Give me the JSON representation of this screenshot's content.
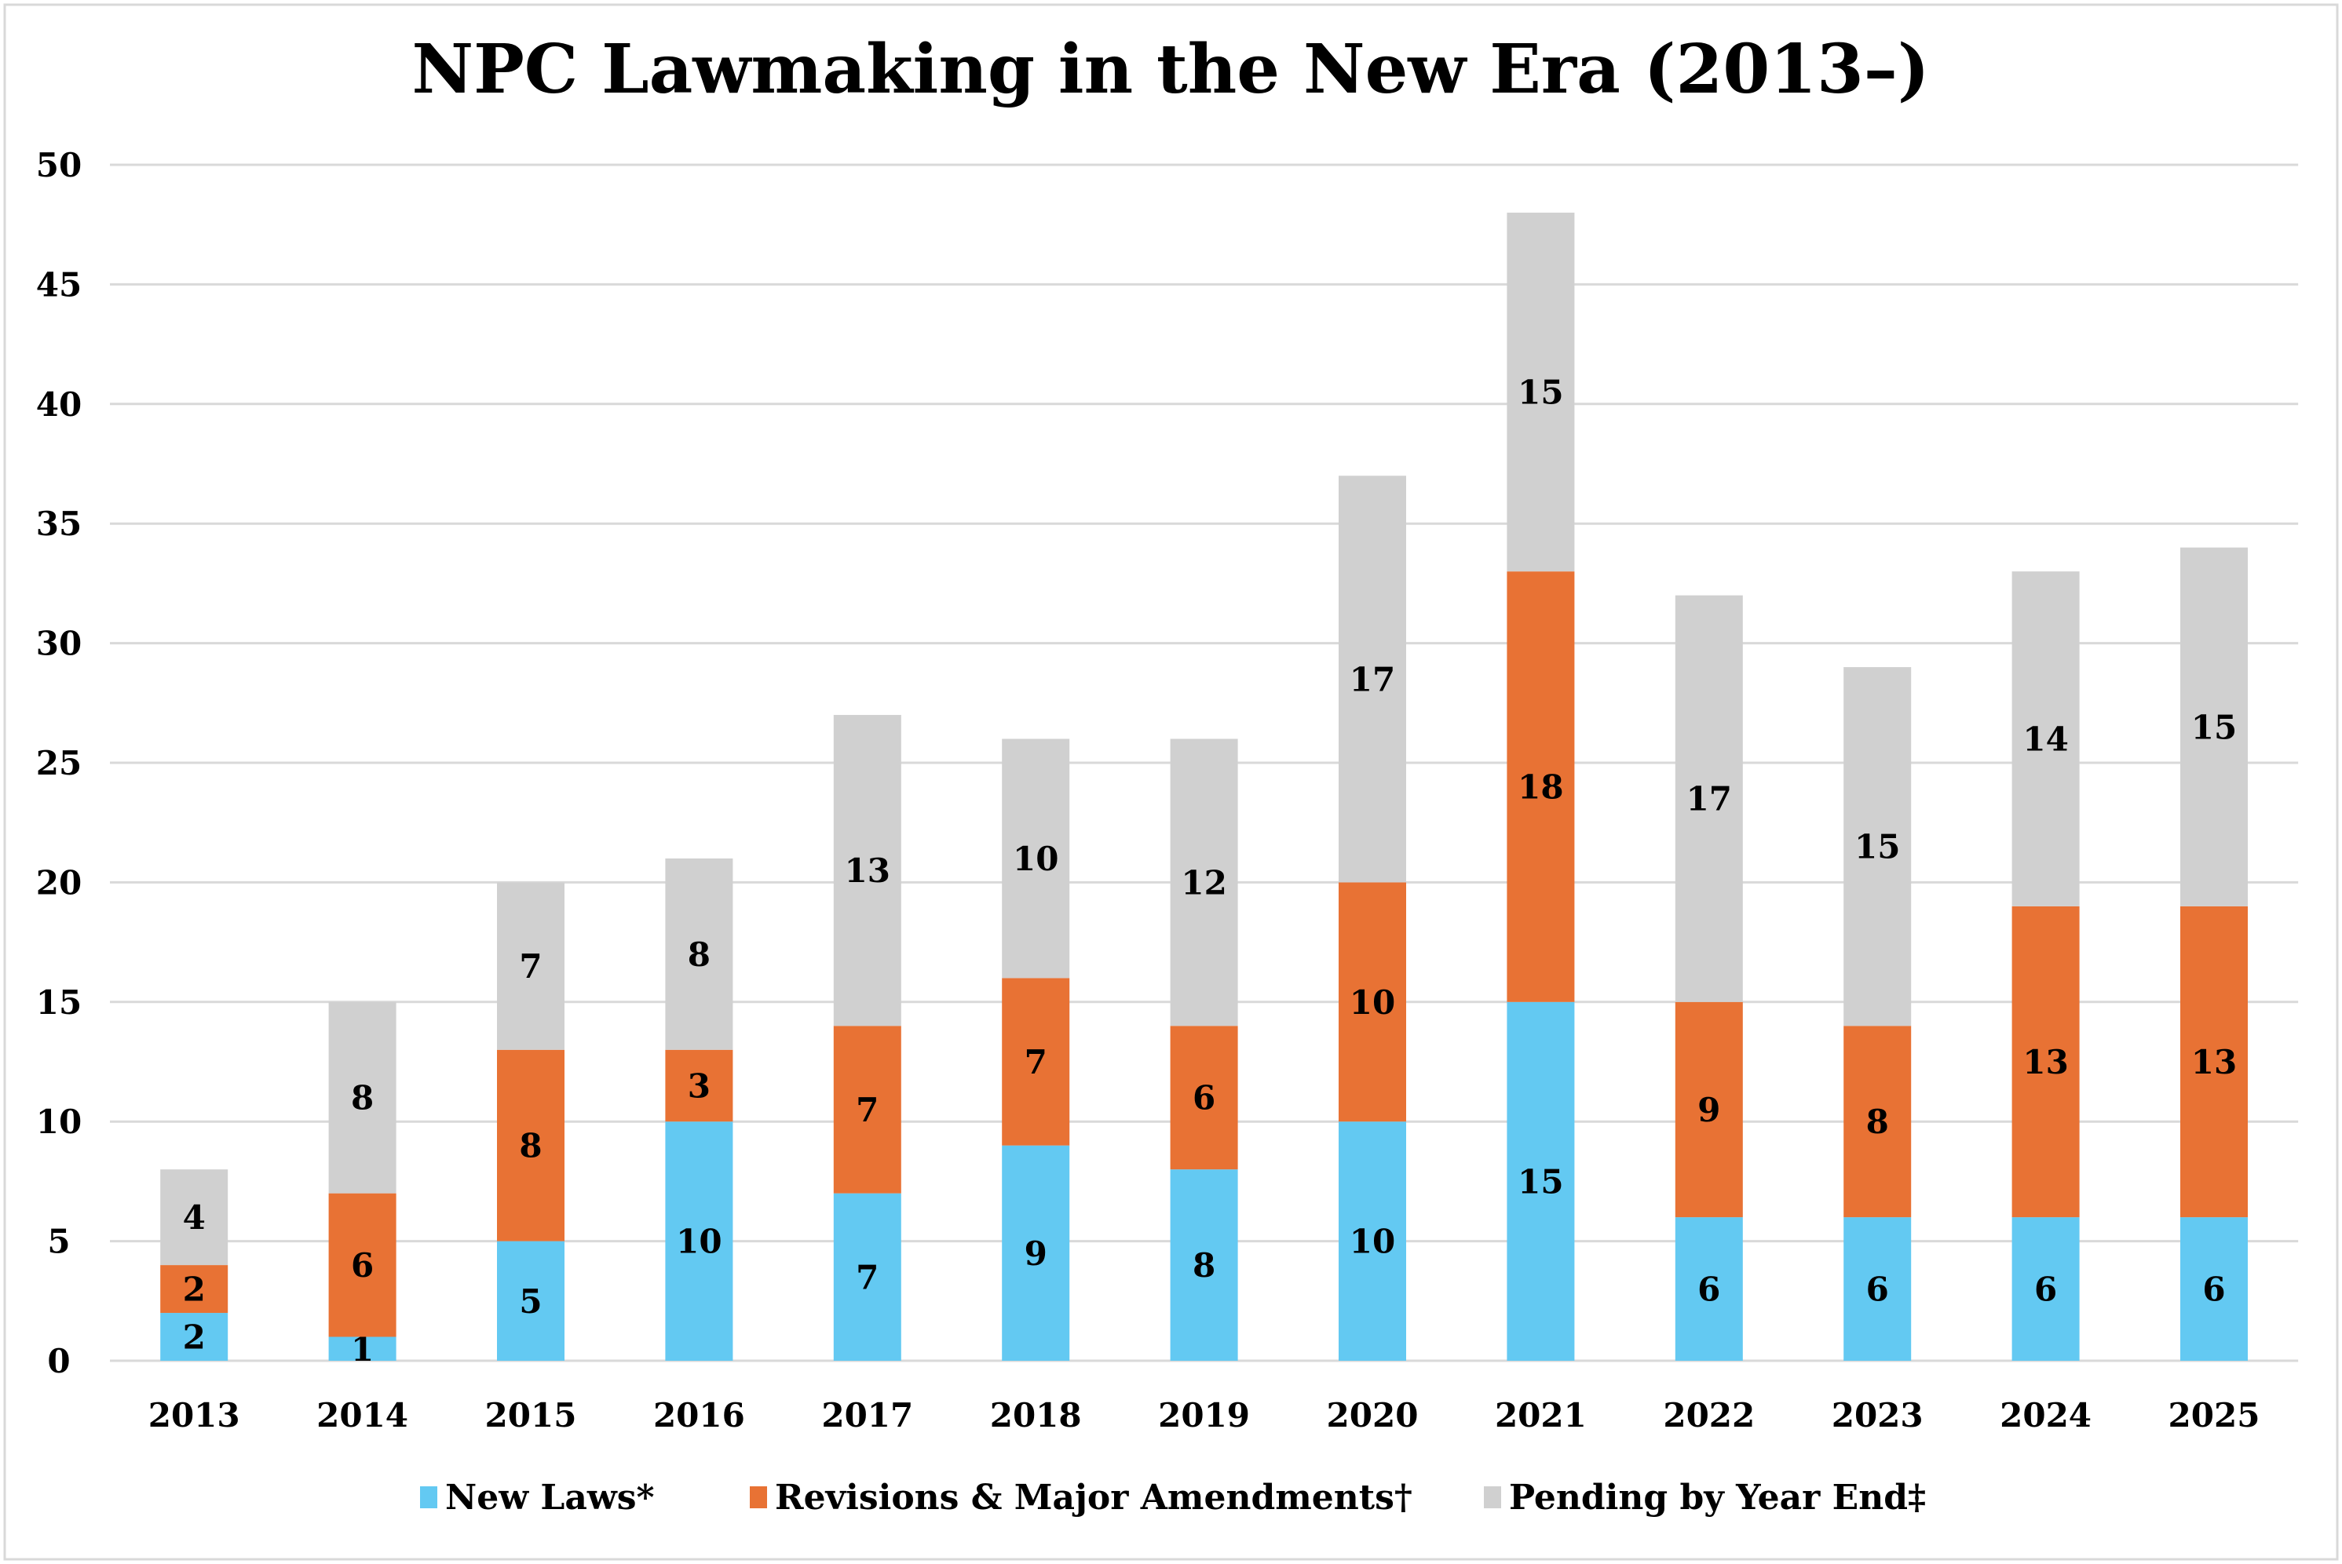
{
  "chart_data": {
    "type": "bar",
    "stacked": true,
    "title": "NPC Lawmaking in the New Era (2013–)",
    "xlabel": "",
    "ylabel": "",
    "ylim": [
      0,
      50
    ],
    "yticks": [
      0,
      5,
      10,
      15,
      20,
      25,
      30,
      35,
      40,
      45,
      50
    ],
    "grid": true,
    "legend_position": "bottom",
    "categories": [
      "2013",
      "2014",
      "2015",
      "2016",
      "2017",
      "2018",
      "2019",
      "2020",
      "2021",
      "2022",
      "2023",
      "2024",
      "2025"
    ],
    "series": [
      {
        "name": "New Laws*",
        "color": "#63C9F2",
        "values": [
          2,
          1,
          5,
          10,
          7,
          9,
          8,
          10,
          15,
          6,
          6,
          6,
          6
        ]
      },
      {
        "name": "Revisions & Major Amendments†",
        "color": "#E87234",
        "values": [
          2,
          6,
          8,
          3,
          7,
          7,
          6,
          10,
          18,
          9,
          8,
          13,
          13
        ]
      },
      {
        "name": "Pending by Year End‡",
        "color": "#D0D0D0",
        "values": [
          4,
          8,
          7,
          8,
          13,
          10,
          12,
          17,
          15,
          17,
          15,
          14,
          15
        ]
      }
    ],
    "data_labels": true
  }
}
